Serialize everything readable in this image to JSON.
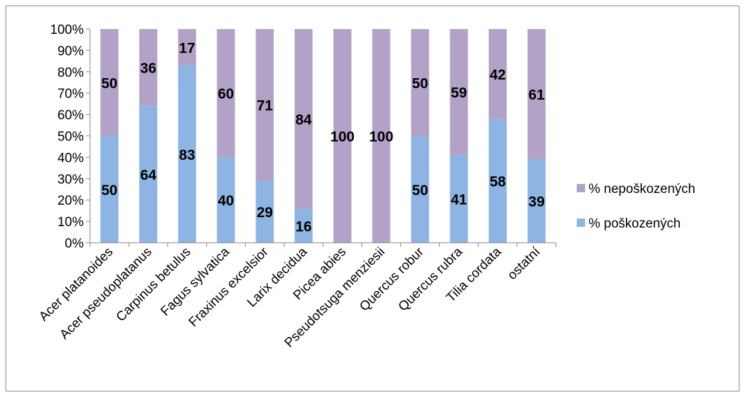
{
  "chart_data": {
    "type": "bar",
    "stacked": "percent",
    "categories": [
      "Acer platanoides",
      "Acer pseudoplatanus",
      "Carpinus betulus",
      "Fagus sylvatica",
      "Fraxinus excelsior",
      "Larix decidua",
      "Picea abies",
      "Pseudotsuga menziesii",
      "Quercus robur",
      "Quercus rubra",
      "Tilia cordata",
      "ostatní"
    ],
    "series": [
      {
        "name": "% poškozených",
        "color": "#8eb4e3",
        "values": [
          50,
          64,
          83,
          40,
          29,
          16,
          0,
          0,
          50,
          41,
          58,
          39
        ]
      },
      {
        "name": "% nepoškozených",
        "color": "#b3a2c7",
        "values": [
          50,
          36,
          17,
          60,
          71,
          84,
          100,
          100,
          50,
          59,
          42,
          61
        ]
      }
    ],
    "ylim": [
      0,
      100
    ],
    "yticks": [
      "0%",
      "10%",
      "20%",
      "30%",
      "40%",
      "50%",
      "60%",
      "70%",
      "80%",
      "90%",
      "100%"
    ],
    "grid": false,
    "legend_position": "right"
  }
}
